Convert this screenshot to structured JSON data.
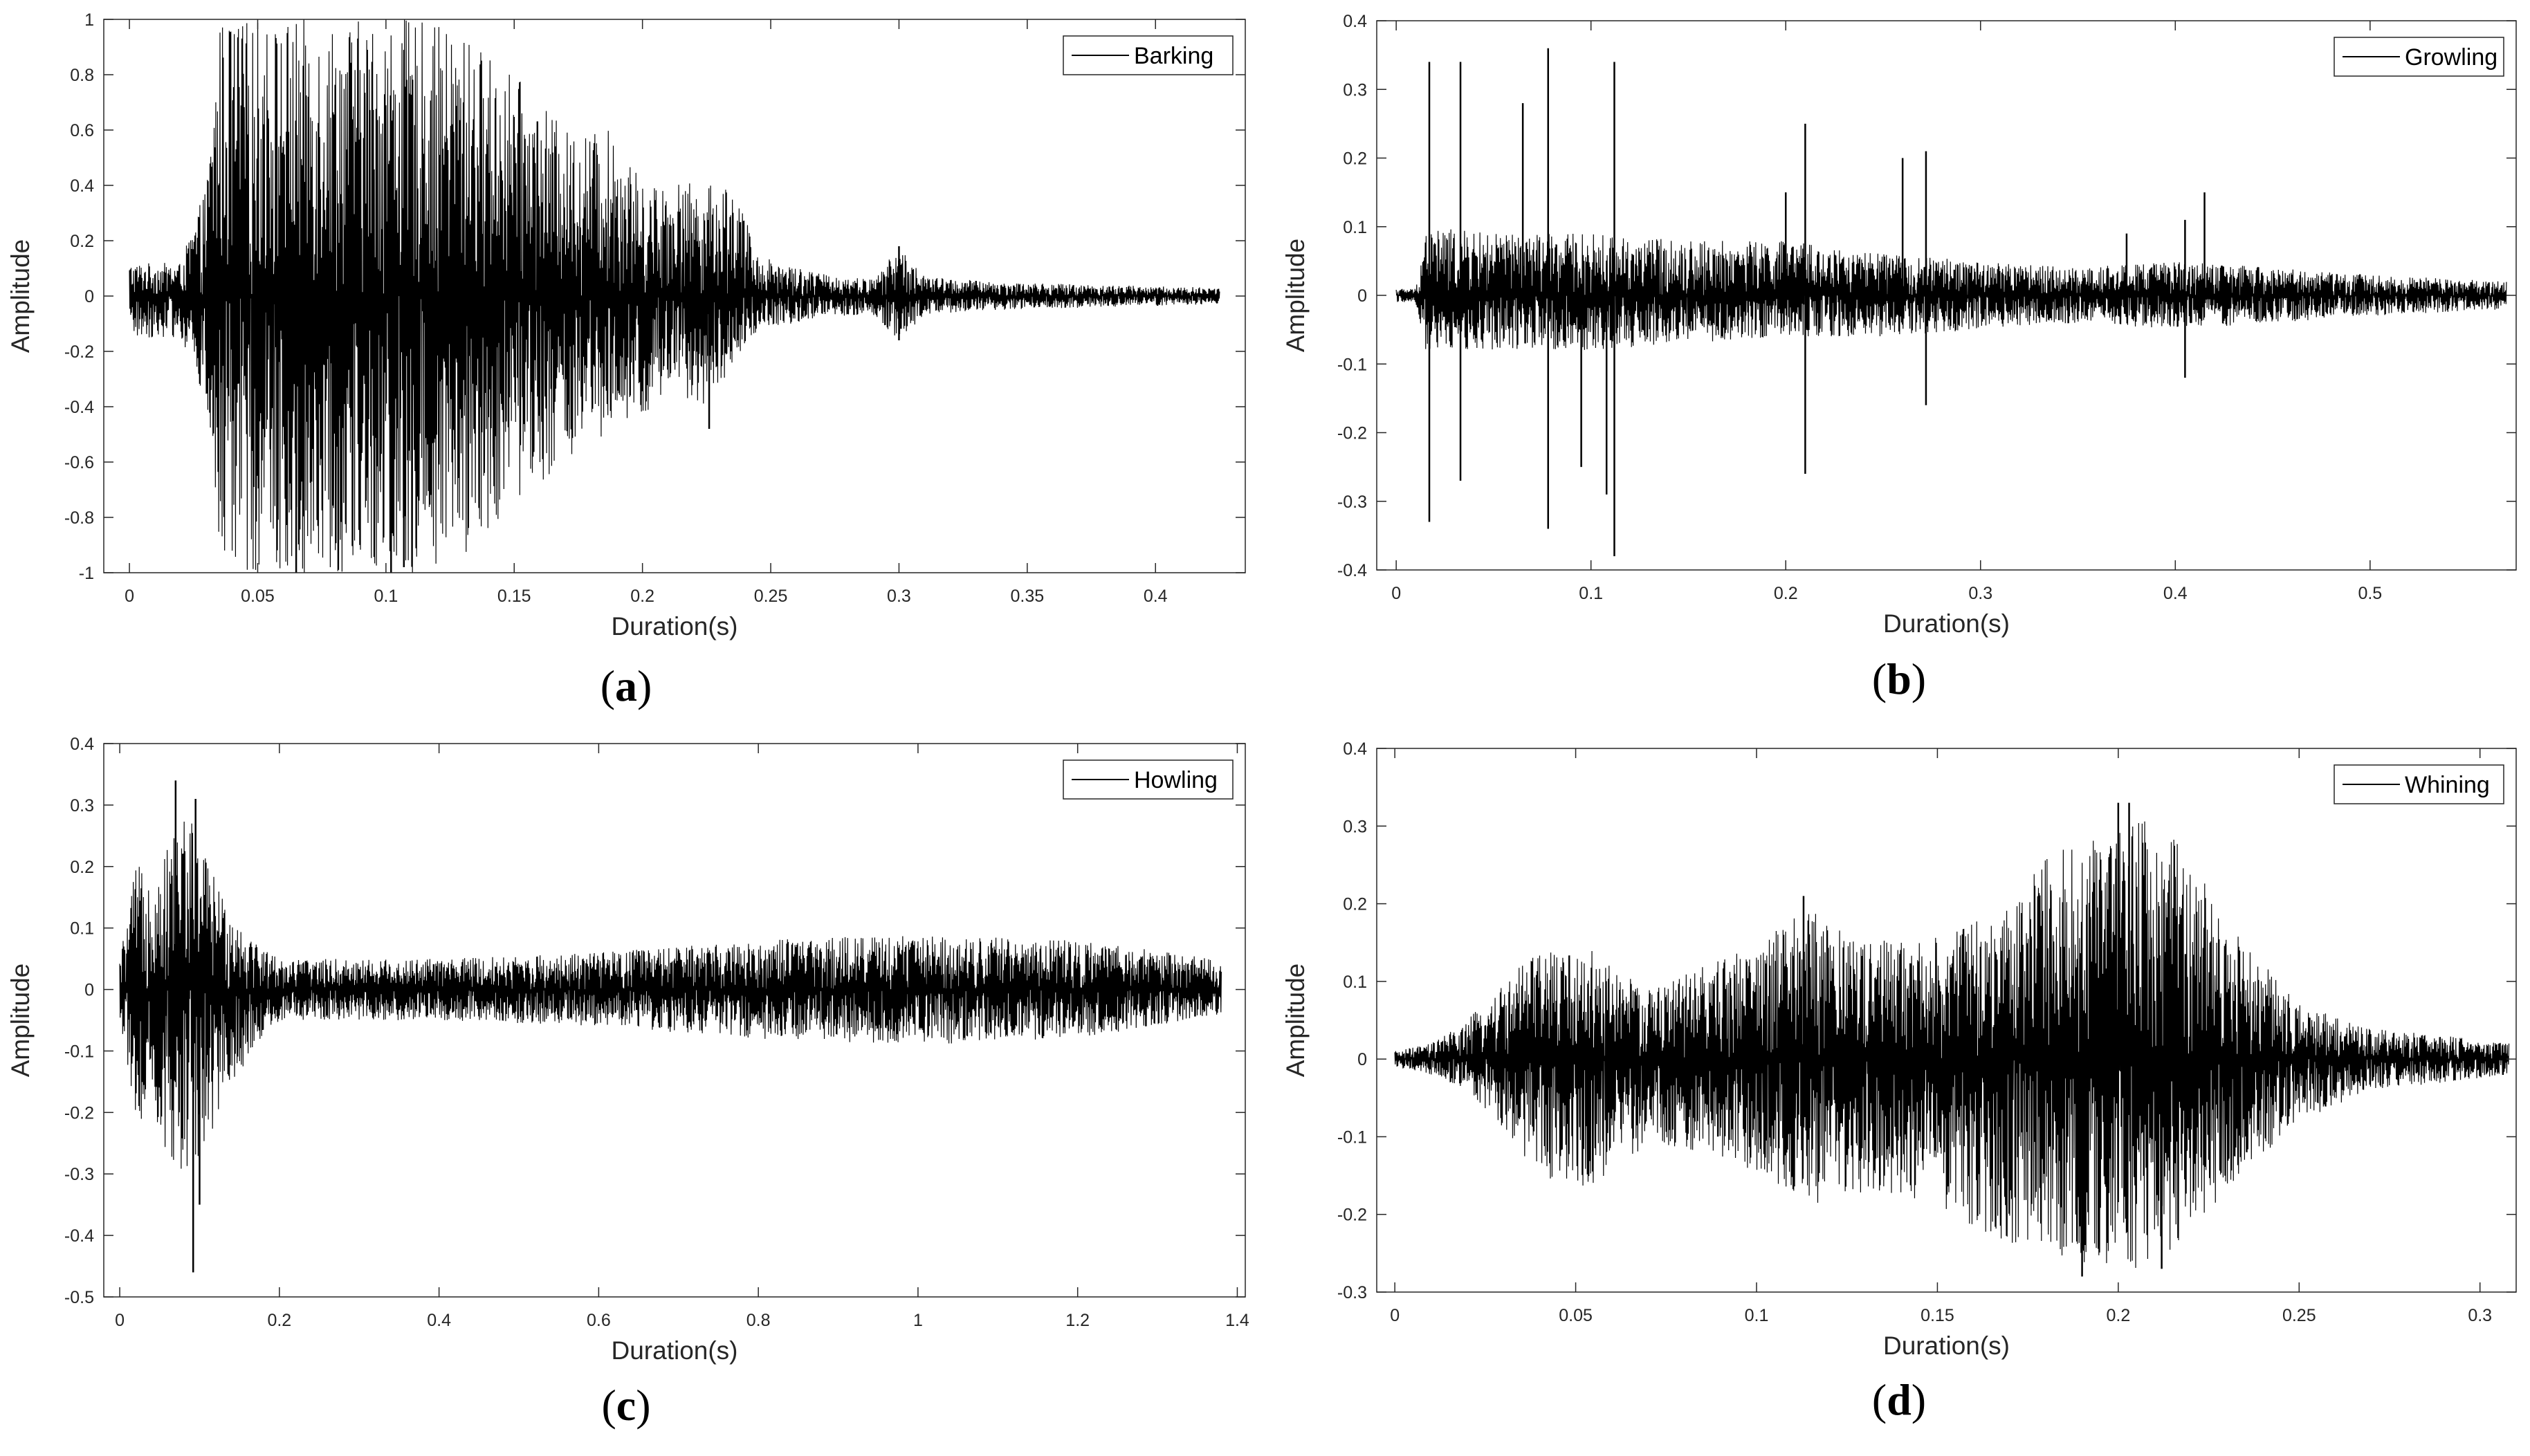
{
  "chart_data": [
    {
      "id": "a",
      "type": "line",
      "caption": "a",
      "xlabel": "Duration(s)",
      "ylabel": "Amplitude",
      "xlim": [
        -0.01,
        0.435
      ],
      "ylim": [
        -1,
        1
      ],
      "xticks": [
        0,
        0.05,
        0.1,
        0.15,
        0.2,
        0.25,
        0.3,
        0.35,
        0.4
      ],
      "xtick_labels": [
        "0",
        "0.05",
        "0.1",
        "0.15",
        "0.2",
        "0.25",
        "0.3",
        "0.35",
        "0.4"
      ],
      "yticks": [
        -1,
        -0.8,
        -0.6,
        -0.4,
        -0.2,
        0,
        0.2,
        0.4,
        0.6,
        0.8,
        1
      ],
      "ytick_labels": [
        "-1",
        "-0.8",
        "-0.6",
        "-0.4",
        "-0.2",
        "0",
        "0.2",
        "0.4",
        "0.6",
        "0.8",
        "1"
      ],
      "legend": "top-right",
      "grid": false,
      "line_color": "#000000",
      "series": [
        {
          "name": "Barking",
          "duration": 0.425,
          "envelope": {
            "x": [
              0,
              0.01,
              0.02,
              0.03,
              0.035,
              0.05,
              0.07,
              0.09,
              0.11,
              0.13,
              0.15,
              0.17,
              0.19,
              0.2,
              0.21,
              0.225,
              0.235,
              0.245,
              0.27,
              0.29,
              0.3,
              0.31,
              0.34,
              0.38,
              0.425
            ],
            "upper": [
              0.12,
              0.12,
              0.12,
              0.4,
              1.0,
              1.0,
              1.0,
              1.0,
              1.0,
              0.95,
              0.8,
              0.6,
              0.6,
              0.4,
              0.42,
              0.4,
              0.42,
              0.15,
              0.08,
              0.06,
              0.18,
              0.07,
              0.05,
              0.04,
              0.03
            ],
            "lower": [
              -0.15,
              -0.15,
              -0.15,
              -0.4,
              -1.0,
              -1.0,
              -1.0,
              -1.0,
              -1.0,
              -0.95,
              -0.75,
              -0.6,
              -0.5,
              -0.45,
              -0.35,
              -0.4,
              -0.25,
              -0.12,
              -0.08,
              -0.07,
              -0.16,
              -0.07,
              -0.05,
              -0.04,
              -0.03
            ]
          },
          "peaks": [
            [
              0.065,
              -1.0
            ],
            [
              0.102,
              -1.0
            ],
            [
              0.107,
              -0.98
            ],
            [
              0.19,
              0.36
            ],
            [
              0.226,
              -0.48
            ],
            [
              0.3,
              0.18
            ],
            [
              0.3,
              -0.16
            ]
          ]
        }
      ]
    },
    {
      "id": "b",
      "type": "line",
      "caption": "b",
      "xlabel": "Duration(s)",
      "ylabel": "Amplitude",
      "xlim": [
        -0.01,
        0.575
      ],
      "ylim": [
        -0.4,
        0.4
      ],
      "xticks": [
        0,
        0.1,
        0.2,
        0.3,
        0.4,
        0.5
      ],
      "xtick_labels": [
        "0",
        "0.1",
        "0.2",
        "0.3",
        "0.4",
        "0.5"
      ],
      "yticks": [
        -0.4,
        -0.3,
        -0.2,
        -0.1,
        0,
        0.1,
        0.2,
        0.3,
        0.4
      ],
      "ytick_labels": [
        "-0.4",
        "-0.3",
        "-0.2",
        "-0.1",
        "0",
        "0.1",
        "0.2",
        "0.3",
        "0.4"
      ],
      "legend": "top-right",
      "grid": false,
      "line_color": "#000000",
      "series": [
        {
          "name": "Growling",
          "duration": 0.57,
          "envelope": {
            "x": [
              0,
              0.01,
              0.015,
              0.05,
              0.1,
              0.15,
              0.2,
              0.25,
              0.3,
              0.35,
              0.4,
              0.45,
              0.5,
              0.57
            ],
            "upper": [
              0.01,
              0.01,
              0.1,
              0.09,
              0.09,
              0.08,
              0.08,
              0.06,
              0.05,
              0.04,
              0.05,
              0.04,
              0.03,
              0.02
            ],
            "lower": [
              -0.01,
              -0.01,
              -0.08,
              -0.08,
              -0.08,
              -0.07,
              -0.06,
              -0.06,
              -0.05,
              -0.04,
              -0.05,
              -0.04,
              -0.03,
              -0.02
            ]
          },
          "peaks": [
            [
              0.017,
              0.34
            ],
            [
              0.017,
              -0.33
            ],
            [
              0.033,
              0.34
            ],
            [
              0.033,
              -0.27
            ],
            [
              0.065,
              0.28
            ],
            [
              0.078,
              0.36
            ],
            [
              0.078,
              -0.34
            ],
            [
              0.095,
              -0.25
            ],
            [
              0.112,
              0.34
            ],
            [
              0.112,
              -0.38
            ],
            [
              0.108,
              -0.29
            ],
            [
              0.2,
              0.15
            ],
            [
              0.21,
              0.25
            ],
            [
              0.21,
              -0.26
            ],
            [
              0.26,
              0.2
            ],
            [
              0.272,
              0.21
            ],
            [
              0.272,
              -0.16
            ],
            [
              0.375,
              0.09
            ],
            [
              0.405,
              0.11
            ],
            [
              0.405,
              -0.12
            ],
            [
              0.415,
              0.15
            ]
          ]
        }
      ]
    },
    {
      "id": "c",
      "type": "line",
      "caption": "c",
      "xlabel": "Duration(s)",
      "ylabel": "Amplitude",
      "xlim": [
        -0.02,
        1.41
      ],
      "ylim": [
        -0.5,
        0.4
      ],
      "xticks": [
        0,
        0.2,
        0.4,
        0.6,
        0.8,
        1,
        1.2,
        1.4
      ],
      "xtick_labels": [
        "0",
        "0.2",
        "0.4",
        "0.6",
        "0.8",
        "1",
        "1.2",
        "1.4"
      ],
      "yticks": [
        -0.5,
        -0.4,
        -0.3,
        -0.2,
        -0.1,
        0,
        0.1,
        0.2,
        0.3,
        0.4
      ],
      "ytick_labels": [
        "-0.5",
        "-0.4",
        "-0.3",
        "-0.2",
        "-0.1",
        "0",
        "0.1",
        "0.2",
        "0.3",
        "0.4"
      ],
      "legend": "top-right",
      "grid": false,
      "line_color": "#000000",
      "series": [
        {
          "name": "Howling",
          "duration": 1.38,
          "envelope": {
            "x": [
              0,
              0.02,
              0.05,
              0.08,
              0.1,
              0.13,
              0.17,
              0.2,
              0.4,
              0.6,
              0.8,
              1.0,
              1.2,
              1.38
            ],
            "upper": [
              0.05,
              0.2,
              0.2,
              0.3,
              0.25,
              0.15,
              0.08,
              0.05,
              0.05,
              0.06,
              0.08,
              0.09,
              0.08,
              0.05
            ],
            "lower": [
              -0.05,
              -0.2,
              -0.25,
              -0.3,
              -0.3,
              -0.18,
              -0.09,
              -0.05,
              -0.05,
              -0.06,
              -0.08,
              -0.09,
              -0.08,
              -0.04
            ]
          },
          "peaks": [
            [
              0.07,
              0.34
            ],
            [
              0.092,
              -0.46
            ],
            [
              0.095,
              0.31
            ],
            [
              0.1,
              -0.35
            ]
          ]
        }
      ]
    },
    {
      "id": "d",
      "type": "line",
      "caption": "d",
      "xlabel": "Duration(s)",
      "ylabel": "Amplitude",
      "xlim": [
        -0.005,
        0.31
      ],
      "ylim": [
        -0.3,
        0.4
      ],
      "xticks": [
        0,
        0.05,
        0.1,
        0.15,
        0.2,
        0.25,
        0.3
      ],
      "xtick_labels": [
        "0",
        "0.05",
        "0.1",
        "0.15",
        "0.2",
        "0.25",
        "0.3"
      ],
      "yticks": [
        -0.3,
        -0.2,
        -0.1,
        0,
        0.1,
        0.2,
        0.3,
        0.4
      ],
      "ytick_labels": [
        "-0.3",
        "-0.2",
        "-0.1",
        "0",
        "0.1",
        "0.2",
        "0.3",
        "0.4"
      ],
      "legend": "top-right",
      "grid": false,
      "line_color": "#000000",
      "series": [
        {
          "name": "Whining",
          "duration": 0.308,
          "envelope": {
            "x": [
              0,
              0.01,
              0.02,
              0.03,
              0.04,
              0.055,
              0.07,
              0.085,
              0.1,
              0.115,
              0.13,
              0.15,
              0.17,
              0.185,
              0.195,
              0.205,
              0.215,
              0.23,
              0.25,
              0.27,
              0.29,
              0.308
            ],
            "upper": [
              0.01,
              0.02,
              0.05,
              0.1,
              0.14,
              0.14,
              0.09,
              0.12,
              0.15,
              0.2,
              0.15,
              0.16,
              0.2,
              0.29,
              0.28,
              0.32,
              0.3,
              0.18,
              0.07,
              0.04,
              0.03,
              0.02
            ],
            "lower": [
              -0.01,
              -0.02,
              -0.04,
              -0.09,
              -0.15,
              -0.17,
              -0.11,
              -0.12,
              -0.15,
              -0.19,
              -0.17,
              -0.19,
              -0.24,
              -0.26,
              -0.27,
              -0.27,
              -0.25,
              -0.17,
              -0.08,
              -0.04,
              -0.03,
              -0.02
            ]
          },
          "peaks": [
            [
              0.113,
              0.21
            ],
            [
              0.2,
              0.33
            ],
            [
              0.203,
              0.33
            ],
            [
              0.19,
              -0.28
            ],
            [
              0.212,
              -0.27
            ]
          ]
        }
      ]
    }
  ]
}
